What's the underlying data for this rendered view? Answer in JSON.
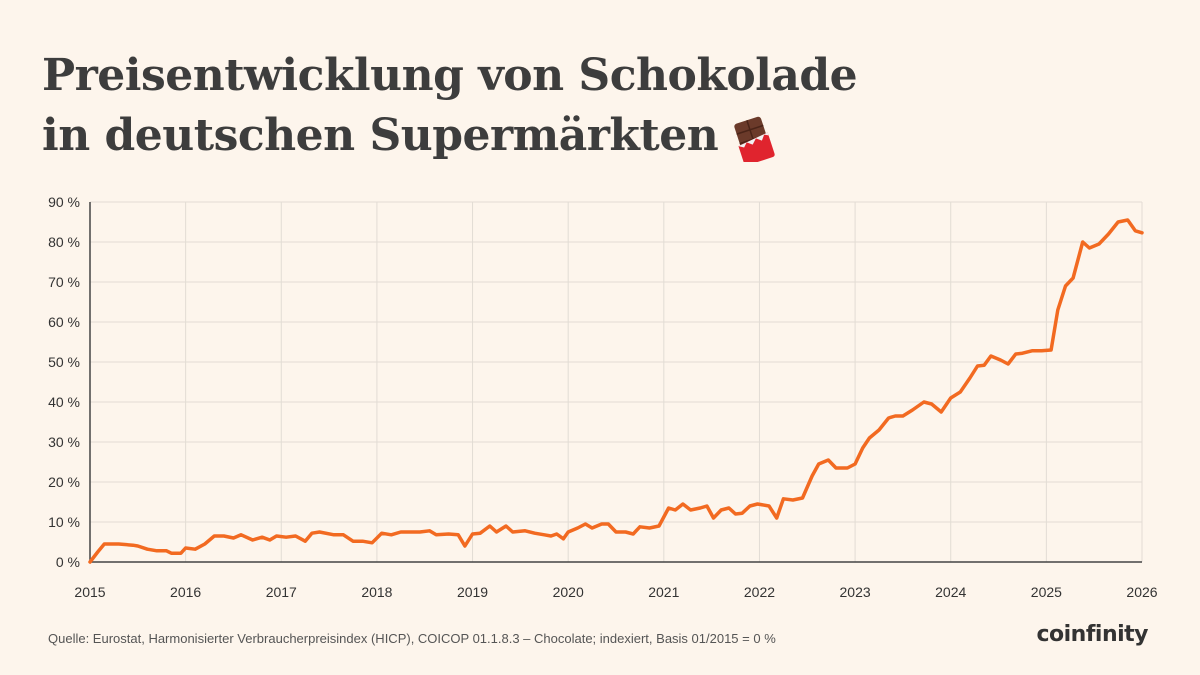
{
  "header": {
    "title_line1": "Preisentwicklung von Schokolade",
    "title_line2": "in deutschen Supermärkten"
  },
  "footer": {
    "source": "Quelle: Eurostat, Harmonisierter Verbraucherpreisindex (HICP), COICOP 01.1.8.3 – Chocolate; indexiert, Basis 01/2015 = 0 %",
    "brand": "coinfinity"
  },
  "icons": {
    "title_emoji": "chocolate-bar-icon"
  },
  "colors": {
    "line": "#f26a21",
    "background": "#fdf5ec",
    "grid": "#e2dcd4",
    "text": "#3d3d3d"
  },
  "chart_data": {
    "type": "line",
    "title": "",
    "xlabel": "",
    "ylabel": "",
    "x_ticks": [
      "2015",
      "2016",
      "2017",
      "2018",
      "2019",
      "2020",
      "2021",
      "2022",
      "2023",
      "2024",
      "2025",
      "2026"
    ],
    "y_ticks": [
      "0 %",
      "10 %",
      "20 %",
      "30 %",
      "40 %",
      "50 %",
      "60 %",
      "70 %",
      "80 %",
      "90 %"
    ],
    "xlim": [
      2015,
      2026
    ],
    "ylim": [
      0,
      90
    ],
    "grid": true,
    "series": [
      {
        "points": [
          [
            2015.0,
            0
          ],
          [
            2015.08,
            2.5
          ],
          [
            2015.15,
            4.5
          ],
          [
            2015.3,
            4.5
          ],
          [
            2015.45,
            4.2
          ],
          [
            2015.5,
            4.0
          ],
          [
            2015.6,
            3.2
          ],
          [
            2015.7,
            2.8
          ],
          [
            2015.8,
            2.8
          ],
          [
            2015.85,
            2.2
          ],
          [
            2015.95,
            2.2
          ],
          [
            2016.0,
            3.5
          ],
          [
            2016.1,
            3.2
          ],
          [
            2016.2,
            4.5
          ],
          [
            2016.3,
            6.5
          ],
          [
            2016.4,
            6.5
          ],
          [
            2016.5,
            6.0
          ],
          [
            2016.58,
            6.8
          ],
          [
            2016.7,
            5.5
          ],
          [
            2016.8,
            6.2
          ],
          [
            2016.88,
            5.5
          ],
          [
            2016.95,
            6.5
          ],
          [
            2017.05,
            6.2
          ],
          [
            2017.15,
            6.5
          ],
          [
            2017.25,
            5.2
          ],
          [
            2017.32,
            7.2
          ],
          [
            2017.4,
            7.5
          ],
          [
            2017.55,
            6.8
          ],
          [
            2017.65,
            6.8
          ],
          [
            2017.75,
            5.2
          ],
          [
            2017.85,
            5.2
          ],
          [
            2017.95,
            4.8
          ],
          [
            2018.05,
            7.2
          ],
          [
            2018.15,
            6.8
          ],
          [
            2018.25,
            7.5
          ],
          [
            2018.35,
            7.5
          ],
          [
            2018.45,
            7.5
          ],
          [
            2018.55,
            7.8
          ],
          [
            2018.62,
            6.8
          ],
          [
            2018.75,
            7.0
          ],
          [
            2018.85,
            6.8
          ],
          [
            2018.92,
            4.0
          ],
          [
            2019.0,
            7.0
          ],
          [
            2019.08,
            7.2
          ],
          [
            2019.18,
            9.0
          ],
          [
            2019.25,
            7.5
          ],
          [
            2019.35,
            9.0
          ],
          [
            2019.42,
            7.5
          ],
          [
            2019.55,
            7.8
          ],
          [
            2019.65,
            7.2
          ],
          [
            2019.75,
            6.8
          ],
          [
            2019.82,
            6.5
          ],
          [
            2019.88,
            7.0
          ],
          [
            2019.95,
            5.8
          ],
          [
            2020.0,
            7.5
          ],
          [
            2020.1,
            8.5
          ],
          [
            2020.18,
            9.5
          ],
          [
            2020.25,
            8.5
          ],
          [
            2020.35,
            9.5
          ],
          [
            2020.42,
            9.5
          ],
          [
            2020.5,
            7.5
          ],
          [
            2020.6,
            7.5
          ],
          [
            2020.68,
            7.0
          ],
          [
            2020.75,
            8.8
          ],
          [
            2020.85,
            8.5
          ],
          [
            2020.95,
            9.0
          ],
          [
            2021.05,
            13.5
          ],
          [
            2021.12,
            13.0
          ],
          [
            2021.2,
            14.5
          ],
          [
            2021.28,
            13.0
          ],
          [
            2021.38,
            13.5
          ],
          [
            2021.45,
            14.0
          ],
          [
            2021.52,
            11.0
          ],
          [
            2021.6,
            13.0
          ],
          [
            2021.68,
            13.5
          ],
          [
            2021.75,
            12.0
          ],
          [
            2021.82,
            12.2
          ],
          [
            2021.9,
            14.0
          ],
          [
            2021.98,
            14.5
          ],
          [
            2022.1,
            14.0
          ],
          [
            2022.18,
            11.0
          ],
          [
            2022.25,
            15.8
          ],
          [
            2022.35,
            15.5
          ],
          [
            2022.45,
            16.0
          ],
          [
            2022.55,
            21.5
          ],
          [
            2022.62,
            24.5
          ],
          [
            2022.72,
            25.5
          ],
          [
            2022.8,
            23.5
          ],
          [
            2022.92,
            23.5
          ],
          [
            2023.0,
            24.5
          ],
          [
            2023.08,
            28.5
          ],
          [
            2023.15,
            31.0
          ],
          [
            2023.25,
            33.0
          ],
          [
            2023.35,
            36.0
          ],
          [
            2023.42,
            36.5
          ],
          [
            2023.5,
            36.5
          ],
          [
            2023.6,
            38.0
          ],
          [
            2023.72,
            40.0
          ],
          [
            2023.8,
            39.5
          ],
          [
            2023.9,
            37.5
          ],
          [
            2024.0,
            41.0
          ],
          [
            2024.1,
            42.5
          ],
          [
            2024.2,
            46.0
          ],
          [
            2024.28,
            49.0
          ],
          [
            2024.35,
            49.2
          ],
          [
            2024.42,
            51.5
          ],
          [
            2024.52,
            50.5
          ],
          [
            2024.6,
            49.5
          ],
          [
            2024.68,
            52.0
          ],
          [
            2024.75,
            52.2
          ],
          [
            2024.85,
            52.8
          ],
          [
            2024.95,
            52.8
          ],
          [
            2025.05,
            53.0
          ],
          [
            2025.12,
            63.0
          ],
          [
            2025.2,
            69.0
          ],
          [
            2025.28,
            71.0
          ],
          [
            2025.38,
            80.0
          ],
          [
            2025.45,
            78.5
          ],
          [
            2025.55,
            79.5
          ],
          [
            2025.65,
            82.0
          ],
          [
            2025.75,
            85.0
          ],
          [
            2025.85,
            85.5
          ],
          [
            2025.93,
            82.8
          ],
          [
            2026.0,
            82.3
          ]
        ]
      }
    ]
  }
}
